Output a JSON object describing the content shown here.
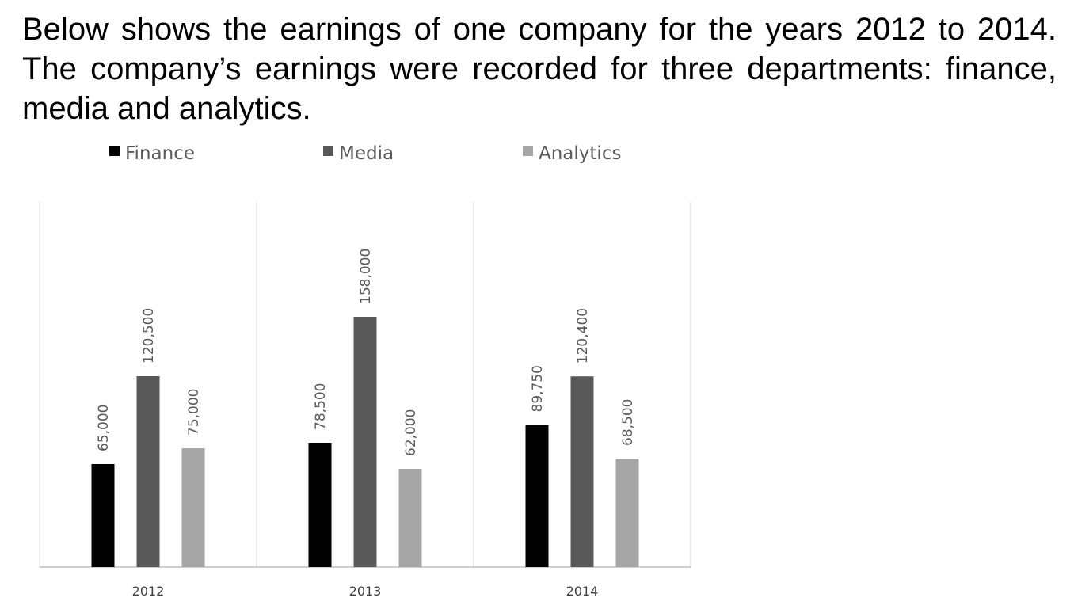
{
  "intro_text": "Below shows the earnings of one company for the years 2012 to 2014. The company’s earnings were recorded for three departments: finance, media and analytics.",
  "chart_data": {
    "type": "bar",
    "categories": [
      "2012",
      "2013",
      "2014"
    ],
    "series": [
      {
        "name": "Finance",
        "color": "#000000",
        "values": [
          65000,
          78500,
          89750
        ],
        "labels": [
          "65,000",
          "78,500",
          "89,750"
        ]
      },
      {
        "name": "Media",
        "color": "#595959",
        "values": [
          120500,
          158000,
          120400
        ],
        "labels": [
          "120,500",
          "158,000",
          "120,400"
        ]
      },
      {
        "name": "Analytics",
        "color": "#a6a6a6",
        "values": [
          75000,
          62000,
          68500
        ],
        "labels": [
          "75,000",
          "62,000",
          "68,500"
        ]
      }
    ],
    "ylim": [
      0,
      180000
    ],
    "grid": false,
    "legend_position": "top",
    "data_labels": "rotated vertical above bars"
  }
}
